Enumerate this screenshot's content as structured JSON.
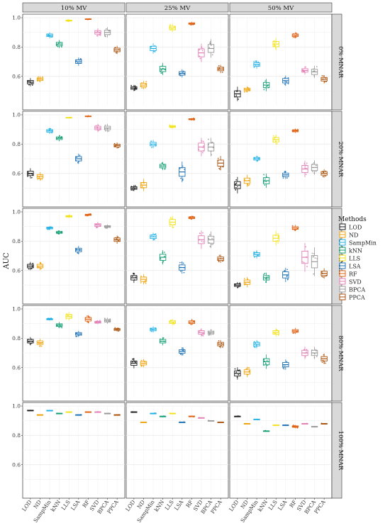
{
  "chart_data": {
    "type": "boxplot",
    "ylabel": "AUC",
    "xlabel": "",
    "ylim": [
      0.4,
      1.0
    ],
    "y_ticks": [
      "0.6",
      "0.8",
      "1.0"
    ],
    "grid": true,
    "legend_position": "right",
    "legend_title": "Methods",
    "columns": [
      "10% MV",
      "25% MV",
      "50% MV"
    ],
    "rows": [
      "0% MNAR",
      "20% MNAR",
      "40% MNAR",
      "80% MNAR",
      "100% MNAR"
    ],
    "methods": [
      "LOD",
      "ND",
      "SampMin",
      "kNN",
      "LLS",
      "LSA",
      "RF",
      "SVD",
      "BPCA",
      "PPCA"
    ],
    "colors": [
      "#1a1a1a",
      "#f0a30a",
      "#1fb0e6",
      "#129e73",
      "#f2e21a",
      "#1f72b5",
      "#e06010",
      "#e37eb5",
      "#999999",
      "#a8520d"
    ],
    "medians": [
      [
        [
          0.56,
          0.58,
          0.88,
          0.82,
          0.98,
          0.7,
          0.99,
          0.9,
          0.9,
          0.78
        ],
        [
          0.52,
          0.54,
          0.79,
          0.65,
          0.93,
          0.62,
          0.96,
          0.76,
          0.79,
          0.65
        ],
        [
          0.48,
          0.51,
          0.68,
          0.54,
          0.82,
          0.57,
          0.88,
          0.64,
          0.63,
          0.58
        ]
      ],
      [
        [
          0.6,
          0.58,
          0.89,
          0.84,
          0.98,
          0.7,
          0.99,
          0.91,
          0.91,
          0.79
        ],
        [
          0.5,
          0.52,
          0.8,
          0.65,
          0.92,
          0.61,
          0.97,
          0.78,
          0.78,
          0.67
        ],
        [
          0.52,
          0.55,
          0.7,
          0.55,
          0.83,
          0.59,
          0.89,
          0.63,
          0.64,
          0.6
        ]
      ],
      [
        [
          0.63,
          0.63,
          0.89,
          0.86,
          0.97,
          0.74,
          0.98,
          0.91,
          0.9,
          0.81
        ],
        [
          0.55,
          0.54,
          0.83,
          0.69,
          0.93,
          0.62,
          0.96,
          0.81,
          0.81,
          0.68
        ],
        [
          0.5,
          0.52,
          0.71,
          0.55,
          0.82,
          0.57,
          0.89,
          0.69,
          0.66,
          0.58
        ]
      ],
      [
        [
          0.78,
          0.77,
          0.93,
          0.89,
          0.95,
          0.83,
          0.93,
          0.91,
          0.92,
          0.86
        ],
        [
          0.63,
          0.63,
          0.86,
          0.78,
          0.91,
          0.71,
          0.91,
          0.84,
          0.84,
          0.76
        ],
        [
          0.56,
          0.57,
          0.76,
          0.64,
          0.84,
          0.62,
          0.85,
          0.7,
          0.7,
          0.66
        ]
      ],
      [
        [
          0.97,
          0.94,
          0.97,
          0.95,
          0.96,
          0.94,
          0.96,
          0.96,
          0.95,
          0.94
        ],
        [
          0.96,
          0.89,
          0.95,
          0.93,
          0.95,
          0.89,
          0.93,
          0.92,
          0.9,
          0.89
        ],
        [
          0.93,
          0.88,
          0.91,
          0.83,
          0.87,
          0.87,
          0.86,
          0.88,
          0.86,
          0.88
        ]
      ]
    ],
    "spreads": [
      [
        [
          0.02,
          0.015,
          0.015,
          0.02,
          0.005,
          0.02,
          0.004,
          0.02,
          0.025,
          0.02
        ],
        [
          0.015,
          0.02,
          0.025,
          0.03,
          0.02,
          0.02,
          0.008,
          0.045,
          0.045,
          0.02
        ],
        [
          0.035,
          0.015,
          0.02,
          0.03,
          0.03,
          0.025,
          0.015,
          0.02,
          0.03,
          0.02
        ]
      ],
      [
        [
          0.025,
          0.02,
          0.015,
          0.015,
          0.004,
          0.025,
          0.003,
          0.02,
          0.02,
          0.015
        ],
        [
          0.015,
          0.03,
          0.02,
          0.02,
          0.01,
          0.05,
          0.006,
          0.045,
          0.045,
          0.035
        ],
        [
          0.04,
          0.03,
          0.015,
          0.035,
          0.025,
          0.02,
          0.01,
          0.04,
          0.035,
          0.02
        ]
      ],
      [
        [
          0.02,
          0.02,
          0.01,
          0.01,
          0.008,
          0.02,
          0.006,
          0.015,
          0.01,
          0.02
        ],
        [
          0.025,
          0.025,
          0.02,
          0.035,
          0.03,
          0.03,
          0.01,
          0.045,
          0.04,
          0.02
        ],
        [
          0.015,
          0.025,
          0.02,
          0.025,
          0.035,
          0.035,
          0.015,
          0.07,
          0.07,
          0.025
        ]
      ],
      [
        [
          0.02,
          0.02,
          0.006,
          0.015,
          0.02,
          0.015,
          0.02,
          0.01,
          0.015,
          0.01
        ],
        [
          0.025,
          0.02,
          0.015,
          0.02,
          0.015,
          0.02,
          0.015,
          0.02,
          0.015,
          0.02
        ],
        [
          0.03,
          0.025,
          0.02,
          0.035,
          0.02,
          0.025,
          0.015,
          0.03,
          0.03,
          0.025
        ]
      ],
      [
        [
          0.003,
          0.002,
          0.002,
          0.002,
          0.002,
          0.002,
          0.002,
          0.002,
          0.002,
          0.002
        ],
        [
          0.002,
          0.002,
          0.002,
          0.002,
          0.002,
          0.002,
          0.003,
          0.002,
          0.002,
          0.002
        ],
        [
          0.002,
          0.002,
          0.002,
          0.002,
          0.002,
          0.002,
          0.008,
          0.002,
          0.002,
          0.002
        ]
      ]
    ]
  }
}
